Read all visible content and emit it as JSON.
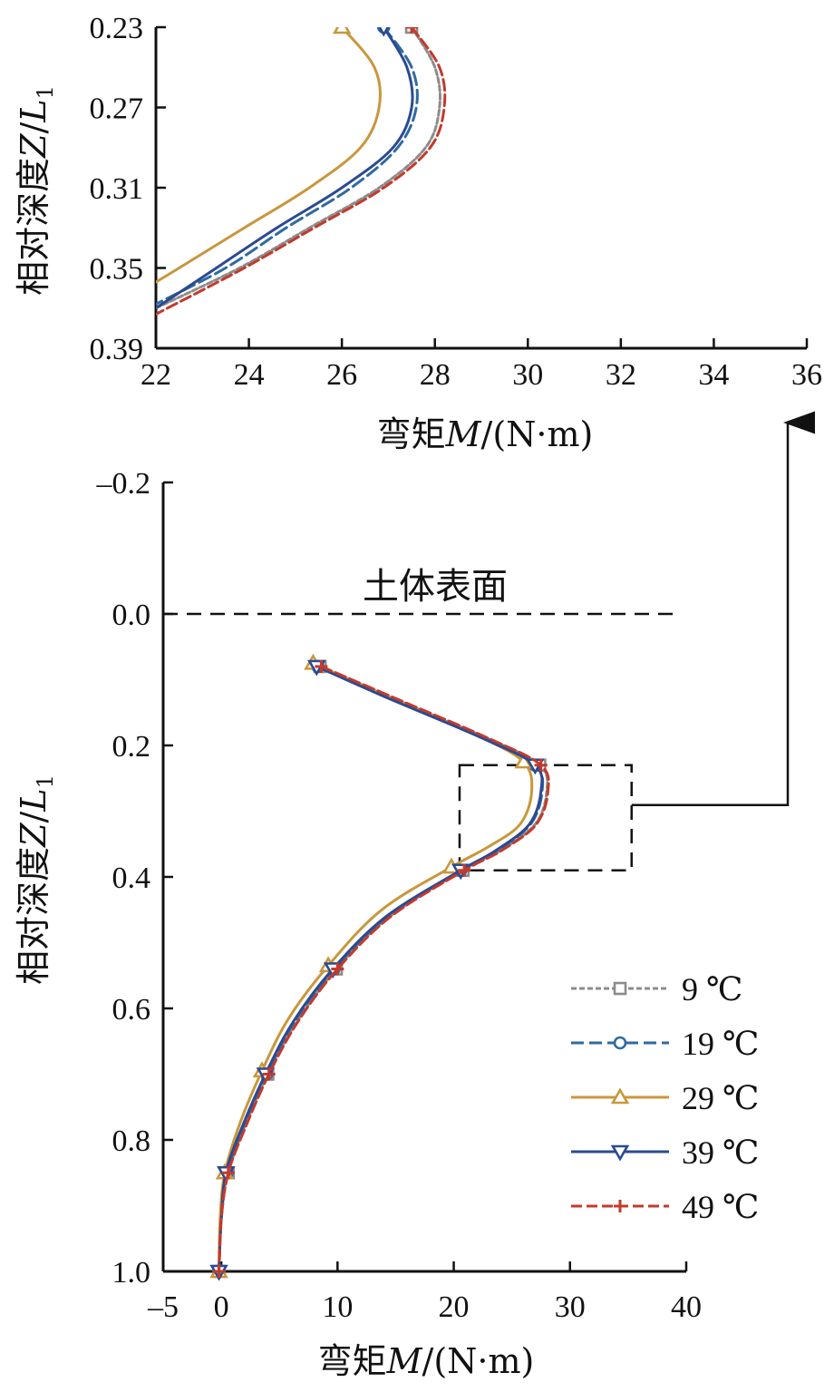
{
  "chart_data": [
    {
      "type": "line",
      "panel": "inset",
      "xlabel": {
        "pre": "弯矩",
        "var": "M",
        "post": "/(N·m)"
      },
      "ylabel": {
        "pre": "相对深度",
        "var": "Z",
        "slash": "/",
        "var2": "L",
        "sub": "1"
      },
      "xlim": [
        22,
        36
      ],
      "ylim": [
        0.23,
        0.39
      ],
      "x_ticks": [
        "22",
        "24",
        "26",
        "28",
        "30",
        "32",
        "34",
        "36"
      ],
      "y_ticks": [
        "0.23",
        "0.27",
        "0.31",
        "0.35",
        "0.39"
      ],
      "series": [
        {
          "name": "9 ℃",
          "color": "#8c8c8c",
          "dash": "6 3",
          "marker": "square",
          "points": [
            [
              27.5,
              0.23
            ],
            [
              28.0,
              0.25
            ],
            [
              28.1,
              0.27
            ],
            [
              27.8,
              0.29
            ],
            [
              26.8,
              0.31
            ],
            [
              25.3,
              0.33
            ],
            [
              23.8,
              0.35
            ],
            [
              22.0,
              0.37
            ]
          ]
        },
        {
          "name": "19 ℃",
          "color": "#2f6aa0",
          "dash": "14 6",
          "marker": "circle",
          "points": [
            [
              26.9,
              0.23
            ],
            [
              27.5,
              0.25
            ],
            [
              27.6,
              0.27
            ],
            [
              27.2,
              0.29
            ],
            [
              26.2,
              0.31
            ],
            [
              24.8,
              0.33
            ],
            [
              23.5,
              0.35
            ],
            [
              22.0,
              0.368
            ]
          ]
        },
        {
          "name": "29 ℃",
          "color": "#c9973c",
          "dash": "",
          "marker": "triangle-up",
          "points": [
            [
              26.0,
              0.23
            ],
            [
              26.7,
              0.25
            ],
            [
              26.8,
              0.27
            ],
            [
              26.4,
              0.29
            ],
            [
              25.3,
              0.31
            ],
            [
              23.9,
              0.33
            ],
            [
              22.5,
              0.35
            ],
            [
              22.0,
              0.357
            ]
          ]
        },
        {
          "name": "39 ℃",
          "color": "#2b4a91",
          "dash": "",
          "marker": "triangle-down",
          "points": [
            [
              26.9,
              0.23
            ],
            [
              27.4,
              0.25
            ],
            [
              27.5,
              0.27
            ],
            [
              27.1,
              0.29
            ],
            [
              26.0,
              0.31
            ],
            [
              24.6,
              0.33
            ],
            [
              23.3,
              0.35
            ],
            [
              22.0,
              0.37
            ]
          ]
        },
        {
          "name": "49 ℃",
          "color": "#c33a2c",
          "dash": "12 5",
          "marker": "plus",
          "points": [
            [
              27.5,
              0.23
            ],
            [
              28.1,
              0.25
            ],
            [
              28.2,
              0.27
            ],
            [
              27.9,
              0.29
            ],
            [
              26.9,
              0.31
            ],
            [
              25.4,
              0.33
            ],
            [
              23.9,
              0.35
            ],
            [
              22.0,
              0.373
            ]
          ]
        }
      ]
    },
    {
      "type": "line",
      "panel": "main",
      "xlabel": {
        "pre": "弯矩",
        "var": "M",
        "post": "/(N·m)"
      },
      "ylabel": {
        "pre": "相对深度",
        "var": "Z",
        "slash": "/",
        "var2": "L",
        "sub": "1"
      },
      "xlim": [
        -5,
        40
      ],
      "ylim": [
        -0.2,
        1.0
      ],
      "x_ticks": [
        "–5",
        "0",
        "10",
        "20",
        "30",
        "40"
      ],
      "y_ticks": [
        "–0.2",
        "0.0",
        "0.2",
        "0.4",
        "0.6",
        "0.8",
        "1.0"
      ],
      "annotation": "土体表面",
      "zoom_box": {
        "x": [
          20.5,
          35.3
        ],
        "y": [
          0.23,
          0.39
        ]
      },
      "legend": "lower-right",
      "series": [
        {
          "name": "9 ℃",
          "color": "#8c8c8c",
          "dash": "6 3",
          "marker": "square",
          "points": [
            [
              8.5,
              0.08
            ],
            [
              15.0,
              0.13
            ],
            [
              23.0,
              0.19
            ],
            [
              27.4,
              0.23
            ],
            [
              28.0,
              0.27
            ],
            [
              27.0,
              0.32
            ],
            [
              24.0,
              0.36
            ],
            [
              20.8,
              0.39
            ],
            [
              14.5,
              0.46
            ],
            [
              9.9,
              0.54
            ],
            [
              6.5,
              0.62
            ],
            [
              4.0,
              0.7
            ],
            [
              2.0,
              0.78
            ],
            [
              0.6,
              0.85
            ],
            [
              0.0,
              0.92
            ],
            [
              -0.2,
              1.0
            ]
          ],
          "markers": [
            [
              8.5,
              0.08
            ],
            [
              27.4,
              0.23
            ],
            [
              20.8,
              0.39
            ],
            [
              9.9,
              0.54
            ],
            [
              4.0,
              0.7
            ],
            [
              0.6,
              0.85
            ],
            [
              -0.2,
              1.0
            ]
          ]
        },
        {
          "name": "19 ℃",
          "color": "#2f6aa0",
          "dash": "14 6",
          "marker": "circle",
          "points": [
            [
              8.3,
              0.08
            ],
            [
              14.8,
              0.13
            ],
            [
              22.8,
              0.19
            ],
            [
              27.0,
              0.23
            ],
            [
              27.6,
              0.27
            ],
            [
              26.6,
              0.32
            ],
            [
              23.7,
              0.36
            ],
            [
              20.6,
              0.39
            ],
            [
              14.3,
              0.46
            ],
            [
              9.7,
              0.54
            ],
            [
              6.3,
              0.62
            ],
            [
              3.9,
              0.7
            ],
            [
              1.9,
              0.78
            ],
            [
              0.5,
              0.85
            ],
            [
              0.0,
              0.92
            ],
            [
              -0.2,
              1.0
            ]
          ],
          "markers": [
            [
              8.3,
              0.08
            ],
            [
              27.0,
              0.23
            ],
            [
              20.6,
              0.39
            ],
            [
              9.7,
              0.54
            ],
            [
              3.9,
              0.7
            ],
            [
              0.5,
              0.85
            ],
            [
              -0.2,
              1.0
            ]
          ]
        },
        {
          "name": "29 ℃",
          "color": "#c9973c",
          "dash": "",
          "marker": "triangle-up",
          "points": [
            [
              7.9,
              0.075
            ],
            [
              14.2,
              0.125
            ],
            [
              22.0,
              0.185
            ],
            [
              26.0,
              0.225
            ],
            [
              26.7,
              0.27
            ],
            [
              25.7,
              0.32
            ],
            [
              22.9,
              0.355
            ],
            [
              19.8,
              0.385
            ],
            [
              13.8,
              0.45
            ],
            [
              9.2,
              0.535
            ],
            [
              5.8,
              0.615
            ],
            [
              3.5,
              0.695
            ],
            [
              1.6,
              0.775
            ],
            [
              0.3,
              0.85
            ],
            [
              -0.1,
              0.92
            ],
            [
              -0.2,
              1.0
            ]
          ],
          "markers": [
            [
              7.9,
              0.075
            ],
            [
              26.0,
              0.225
            ],
            [
              19.8,
              0.385
            ],
            [
              9.2,
              0.535
            ],
            [
              3.5,
              0.695
            ],
            [
              0.3,
              0.85
            ],
            [
              -0.2,
              1.0
            ]
          ]
        },
        {
          "name": "39 ℃",
          "color": "#2b4a91",
          "dash": "",
          "marker": "triangle-down",
          "points": [
            [
              8.2,
              0.08
            ],
            [
              14.6,
              0.13
            ],
            [
              22.6,
              0.19
            ],
            [
              27.0,
              0.23
            ],
            [
              27.5,
              0.27
            ],
            [
              26.5,
              0.32
            ],
            [
              23.6,
              0.36
            ],
            [
              20.6,
              0.39
            ],
            [
              14.2,
              0.46
            ],
            [
              9.6,
              0.54
            ],
            [
              6.2,
              0.62
            ],
            [
              3.8,
              0.7
            ],
            [
              1.8,
              0.78
            ],
            [
              0.4,
              0.85
            ],
            [
              0.0,
              0.92
            ],
            [
              -0.2,
              1.0
            ]
          ],
          "markers": [
            [
              8.2,
              0.08
            ],
            [
              27.0,
              0.23
            ],
            [
              20.6,
              0.39
            ],
            [
              9.6,
              0.54
            ],
            [
              3.8,
              0.7
            ],
            [
              0.4,
              0.85
            ],
            [
              -0.2,
              1.0
            ]
          ]
        },
        {
          "name": "49 ℃",
          "color": "#c33a2c",
          "dash": "12 5",
          "marker": "plus",
          "points": [
            [
              8.6,
              0.08
            ],
            [
              15.2,
              0.13
            ],
            [
              23.1,
              0.19
            ],
            [
              27.5,
              0.23
            ],
            [
              28.1,
              0.27
            ],
            [
              27.1,
              0.32
            ],
            [
              24.1,
              0.36
            ],
            [
              20.9,
              0.39
            ],
            [
              14.6,
              0.46
            ],
            [
              10.0,
              0.54
            ],
            [
              6.6,
              0.62
            ],
            [
              4.1,
              0.7
            ],
            [
              2.1,
              0.78
            ],
            [
              0.6,
              0.85
            ],
            [
              0.0,
              0.92
            ],
            [
              -0.2,
              1.0
            ]
          ],
          "markers": [
            [
              8.6,
              0.08
            ],
            [
              27.5,
              0.23
            ],
            [
              20.9,
              0.39
            ],
            [
              10.0,
              0.54
            ],
            [
              4.1,
              0.7
            ],
            [
              0.6,
              0.85
            ],
            [
              -0.2,
              1.0
            ]
          ]
        }
      ]
    }
  ]
}
